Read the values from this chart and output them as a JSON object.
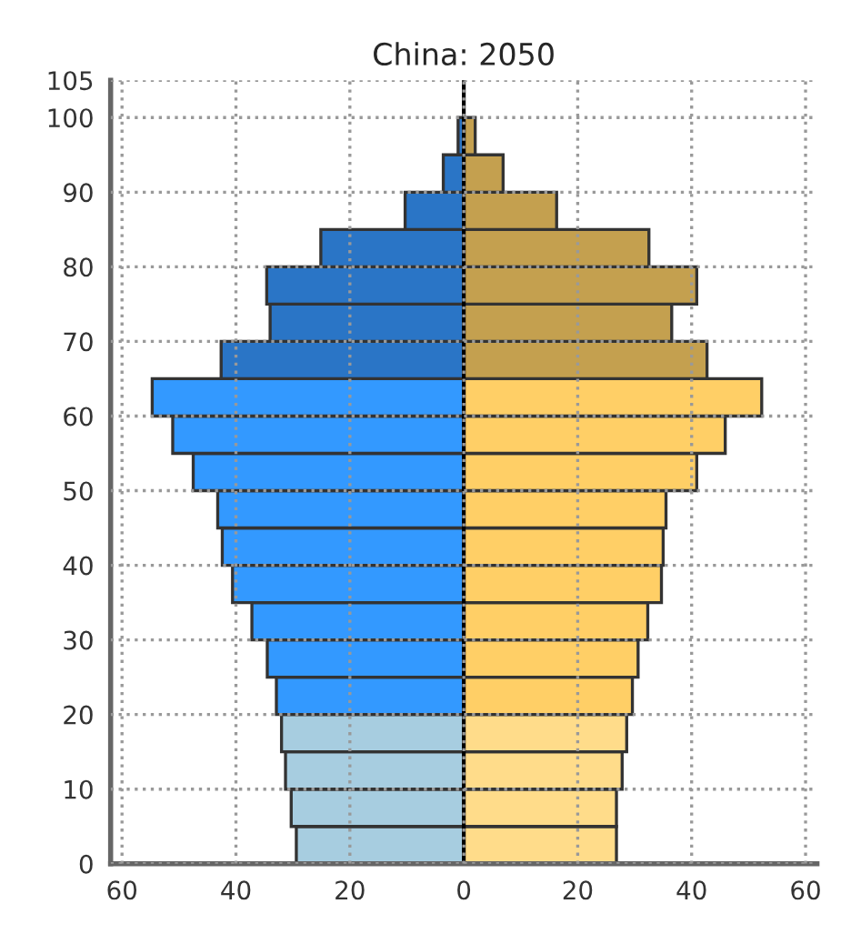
{
  "chart_data": {
    "type": "bar",
    "orientation": "horizontal",
    "title": "China: 2050",
    "x": [
      2.5,
      7.5,
      12.5,
      17.5,
      22.5,
      27.5,
      32.5,
      37.5,
      42.5,
      47.5,
      52.5,
      57.5,
      62.5,
      67.5,
      72.5,
      77.5,
      82.5,
      87.5,
      92.5,
      97.5
    ],
    "series": [
      {
        "values": [
          -29.4,
          -30.3,
          -31.3,
          -32.0,
          -32.9,
          -34.5,
          -37.2,
          -40.6,
          -42.4,
          -43.2,
          -47.5,
          -51.1,
          -54.7,
          -42.6,
          -34.0,
          -34.6,
          -25.1,
          -10.3,
          -3.6,
          -1.0
        ],
        "colors": [
          "#a7cde0",
          "#a7cde0",
          "#a7cde0",
          "#a7cde0",
          "#3399ff",
          "#3399ff",
          "#3399ff",
          "#3399ff",
          "#3399ff",
          "#3399ff",
          "#3399ff",
          "#3399ff",
          "#3399ff",
          "#2a75c6",
          "#2a75c6",
          "#2a75c6",
          "#2a75c6",
          "#2a75c6",
          "#2a75c6",
          "#2a75c6"
        ]
      },
      {
        "values": [
          26.8,
          26.8,
          27.8,
          28.6,
          29.6,
          30.6,
          32.3,
          34.7,
          35.0,
          35.5,
          40.9,
          45.9,
          52.3,
          42.7,
          36.5,
          40.9,
          32.5,
          16.3,
          6.9,
          2.0
        ],
        "colors": [
          "#ffdc8a",
          "#ffdc8a",
          "#ffdc8a",
          "#ffdc8a",
          "#ffcf66",
          "#ffcf66",
          "#ffcf66",
          "#ffcf66",
          "#ffcf66",
          "#ffcf66",
          "#ffcf66",
          "#ffcf66",
          "#ffcf66",
          "#c4a04f",
          "#c4a04f",
          "#c4a04f",
          "#c4a04f",
          "#c4a04f",
          "#c4a04f",
          "#c4a04f"
        ]
      }
    ],
    "xlim": [
      -62,
      62
    ],
    "xticks": [
      {
        "value": -60,
        "label": "60"
      },
      {
        "value": -40,
        "label": "40"
      },
      {
        "value": -20,
        "label": "20"
      },
      0,
      20,
      40,
      60
    ],
    "ylim": [
      0,
      105
    ],
    "yticks": [
      0,
      10,
      20,
      30,
      40,
      50,
      60,
      70,
      80,
      90,
      100,
      105
    ],
    "grid": true,
    "line_style": "dotted",
    "stacked": true
  }
}
